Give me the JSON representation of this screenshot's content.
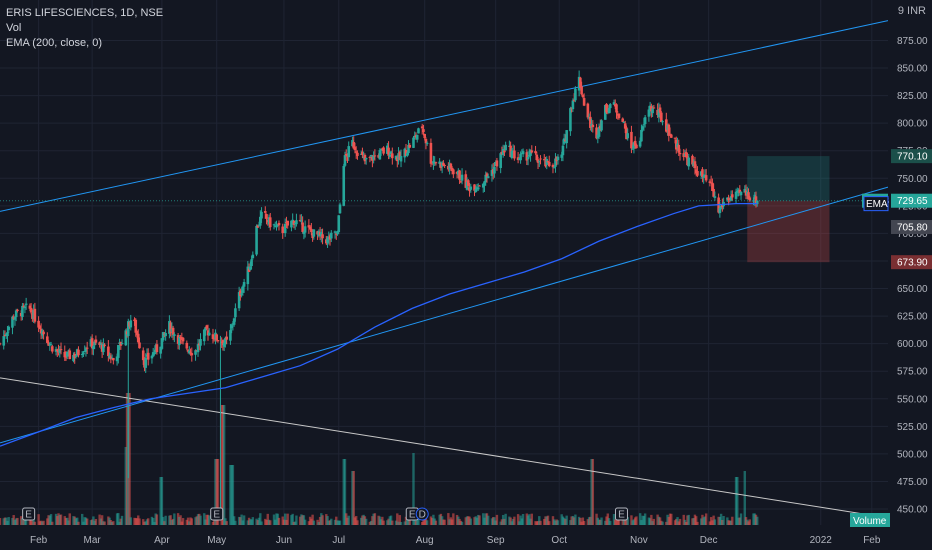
{
  "legend": {
    "title": "ERIS LIFESCIENCES, 1D, NSE",
    "vol": "Vol",
    "ema": "EMA (200, close, 0)"
  },
  "currency_label": "9 INR",
  "colors": {
    "background": "#131722",
    "up": "#26a69a",
    "down": "#ef5350",
    "trendline": "#2196f3",
    "ema": "#2962ff",
    "grid": "#1f2433",
    "white_line": "#c8c8c8"
  },
  "chart_data": {
    "type": "candlestick",
    "symbol": "ERIS",
    "interval": "1D",
    "exchange": "NSE",
    "ylim": [
      440,
      900
    ],
    "yticks": [
      450,
      475,
      500,
      525,
      550,
      575,
      600,
      625,
      650,
      675,
      700,
      725,
      750,
      775,
      800,
      825,
      850,
      875
    ],
    "ytick_labels": [
      "450.00",
      "475.00",
      "500.00",
      "525.00",
      "550.00",
      "575.00",
      "600.00",
      "625.00",
      "650.00",
      "675.00",
      "700.00",
      "725.00",
      "750.00",
      "775.00",
      "800.00",
      "825.00",
      "850.00",
      "875.00"
    ],
    "x_labels": [
      "Feb",
      "Mar",
      "Apr",
      "May",
      "Jun",
      "Jul",
      "Aug",
      "Sep",
      "Oct",
      "Nov",
      "Dec",
      "2022",
      "Feb"
    ],
    "x_label_days": [
      0,
      43,
      99,
      143,
      197,
      241,
      310,
      367,
      418,
      482,
      538,
      628,
      669
    ],
    "x_start_day": -31,
    "x_end_day": 682,
    "bar_days_range": [
      -31,
      577
    ],
    "price_waypoints": [
      [
        -31,
        600
      ],
      [
        -20,
        625
      ],
      [
        -8,
        633
      ],
      [
        0,
        618
      ],
      [
        10,
        598
      ],
      [
        20,
        588
      ],
      [
        30,
        590
      ],
      [
        40,
        600
      ],
      [
        50,
        598
      ],
      [
        60,
        585
      ],
      [
        70,
        610
      ],
      [
        75,
        625
      ],
      [
        85,
        583
      ],
      [
        95,
        595
      ],
      [
        105,
        616
      ],
      [
        115,
        600
      ],
      [
        125,
        592
      ],
      [
        135,
        612
      ],
      [
        143,
        605
      ],
      [
        152,
        600
      ],
      [
        160,
        640
      ],
      [
        170,
        672
      ],
      [
        175,
        705
      ],
      [
        180,
        718
      ],
      [
        185,
        710
      ],
      [
        195,
        702
      ],
      [
        205,
        712
      ],
      [
        212,
        706
      ],
      [
        220,
        700
      ],
      [
        232,
        694
      ],
      [
        240,
        700
      ],
      [
        245,
        765
      ],
      [
        252,
        782
      ],
      [
        262,
        765
      ],
      [
        270,
        770
      ],
      [
        280,
        776
      ],
      [
        290,
        767
      ],
      [
        300,
        783
      ],
      [
        308,
        797
      ],
      [
        315,
        767
      ],
      [
        325,
        762
      ],
      [
        335,
        756
      ],
      [
        345,
        742
      ],
      [
        355,
        745
      ],
      [
        365,
        758
      ],
      [
        375,
        778
      ],
      [
        385,
        768
      ],
      [
        395,
        772
      ],
      [
        405,
        763
      ],
      [
        412,
        762
      ],
      [
        420,
        770
      ],
      [
        428,
        818
      ],
      [
        434,
        840
      ],
      [
        440,
        808
      ],
      [
        447,
        788
      ],
      [
        455,
        812
      ],
      [
        460,
        818
      ],
      [
        468,
        806
      ],
      [
        475,
        778
      ],
      [
        482,
        782
      ],
      [
        490,
        815
      ],
      [
        498,
        808
      ],
      [
        505,
        795
      ],
      [
        512,
        780
      ],
      [
        520,
        768
      ],
      [
        530,
        755
      ],
      [
        540,
        742
      ],
      [
        546,
        720
      ],
      [
        552,
        732
      ],
      [
        560,
        733
      ],
      [
        566,
        738
      ],
      [
        577,
        729.65
      ]
    ],
    "ema": {
      "name": "EMA (200, close, 0)",
      "points": [
        [
          -31,
          507
        ],
        [
          0,
          520
        ],
        [
          30,
          533
        ],
        [
          60,
          542
        ],
        [
          90,
          550
        ],
        [
          120,
          555
        ],
        [
          150,
          560
        ],
        [
          180,
          570
        ],
        [
          210,
          580
        ],
        [
          240,
          595
        ],
        [
          270,
          615
        ],
        [
          300,
          632
        ],
        [
          330,
          645
        ],
        [
          360,
          655
        ],
        [
          390,
          665
        ],
        [
          420,
          677
        ],
        [
          450,
          693
        ],
        [
          480,
          706
        ],
        [
          510,
          718
        ],
        [
          530,
          725
        ],
        [
          560,
          727
        ],
        [
          577,
          727
        ]
      ]
    },
    "trendlines": [
      {
        "name": "upper-channel",
        "points": [
          [
            -31,
            720
          ],
          [
            682,
            893
          ]
        ]
      },
      {
        "name": "lower-channel",
        "points": [
          [
            -31,
            510
          ],
          [
            682,
            742
          ]
        ]
      },
      {
        "name": "descending-line",
        "points": [
          [
            -31,
            569
          ],
          [
            682,
            442
          ]
        ]
      }
    ],
    "position": {
      "entry": 729.65,
      "target": 770.1,
      "stop": 673.9,
      "start_day": 569,
      "end_day": 635
    },
    "price_tags": [
      {
        "label": "770.10",
        "value": 770.1,
        "color": "#1b4f4a"
      },
      {
        "label": "729.65",
        "value": 729.65,
        "color": "#26a69a",
        "symbol": "ERIS"
      },
      {
        "label": "705.80",
        "value": 705.8,
        "color": "#434651"
      },
      {
        "label": "673.90",
        "value": 673.9,
        "color": "#7a2f32"
      }
    ],
    "ema_tag": "EMA",
    "volume_tag": "Volume",
    "event_markers": [
      {
        "label": "E",
        "day": -8
      },
      {
        "label": "E",
        "day": 143
      },
      {
        "label": "E",
        "day": 300
      },
      {
        "label": "D",
        "day": 308
      },
      {
        "label": "E",
        "day": 468
      }
    ],
    "volume_spikes": [
      [
        70,
        0.55
      ],
      [
        72,
        1.0
      ],
      [
        98,
        0.3
      ],
      [
        143,
        0.45
      ],
      [
        146,
        1.0
      ],
      [
        148,
        0.9
      ],
      [
        155,
        0.4
      ],
      [
        245,
        0.45
      ],
      [
        252,
        0.35
      ],
      [
        300,
        0.5
      ],
      [
        445,
        0.45
      ],
      [
        560,
        0.3
      ],
      [
        566,
        0.35
      ]
    ]
  }
}
